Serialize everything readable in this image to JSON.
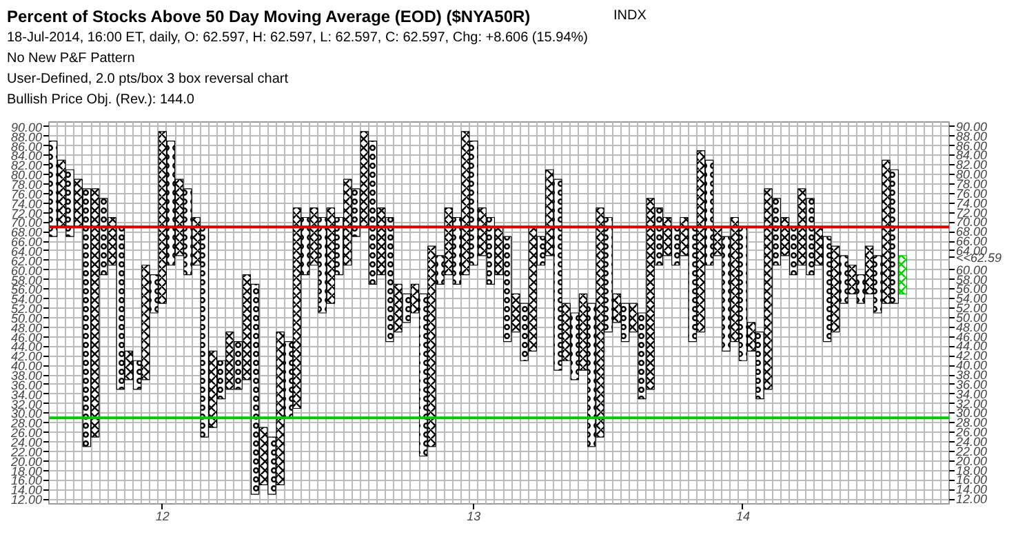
{
  "chart_data": {
    "type": "bar",
    "title": "Percent of Stocks Above 50 Day Moving Average (EOD) ($NYA50R)",
    "subtitle": "18-Jul-2014, 16:00 ET, daily, O: 62.597, H: 62.597, L: 62.597, C: 62.597, Chg: +8.606 (15.94%)",
    "categories": [
      null,
      null,
      null,
      null,
      null,
      null,
      null,
      null,
      null,
      null,
      null,
      null,
      null,
      "12",
      null,
      null,
      null,
      null,
      null,
      null,
      null,
      null,
      null,
      null,
      null,
      null,
      null,
      null,
      null,
      null,
      null,
      null,
      null,
      null,
      null,
      null,
      null,
      null,
      null,
      null,
      null,
      null,
      null,
      null,
      null,
      null,
      null,
      null,
      null,
      null,
      "13",
      null,
      null,
      null,
      null,
      null,
      null,
      null,
      null,
      null,
      null,
      null,
      null,
      null,
      null,
      null,
      null,
      null,
      null,
      null,
      null,
      null,
      null,
      null,
      null,
      null,
      null,
      null,
      null,
      null,
      null,
      null,
      "14",
      null,
      null,
      null,
      null,
      null,
      null,
      null,
      null,
      null,
      null,
      null,
      null,
      null,
      null,
      null,
      null,
      null,
      null,
      null,
      null,
      null,
      null,
      null,
      null
    ],
    "series": [
      {
        "marker": "circle",
        "color": "#000000",
        "values": [
          20,
          null,
          14,
          null,
          54,
          null,
          16,
          null,
          34,
          null,
          6,
          null,
          8,
          null,
          26,
          null,
          18,
          null,
          44,
          null,
          8,
          null,
          10,
          null,
          44,
          null,
          12,
          null,
          16,
          null,
          12,
          null,
          20,
          null,
          12,
          null,
          10,
          null,
          30,
          null,
          26,
          null,
          6,
          null,
          34,
          null,
          6,
          null,
          14,
          null,
          26,
          null,
          14,
          null,
          22,
          null,
          12,
          null,
          6,
          null,
          40,
          null,
          14,
          null,
          30,
          null,
          24,
          null,
          8,
          null,
          18,
          null,
          12,
          null,
          8,
          null,
          24,
          null,
          22,
          null,
          24,
          null,
          28,
          null,
          14,
          null,
          14,
          null,
          10,
          null,
          16,
          null,
          22,
          null,
          10,
          null,
          6,
          null,
          12,
          null,
          28,
          null,
          null,
          null,
          null,
          null,
          null
        ],
        "base": [
          67,
          null,
          67,
          null,
          23,
          null,
          59,
          null,
          35,
          null,
          35,
          null,
          51,
          null,
          61,
          null,
          59,
          null,
          25,
          null,
          33,
          null,
          35,
          null,
          13,
          null,
          13,
          null,
          29,
          null,
          59,
          null,
          51,
          null,
          59,
          null,
          67,
          null,
          57,
          null,
          45,
          null,
          49,
          null,
          21,
          null,
          57,
          null,
          57,
          null,
          61,
          null,
          57,
          null,
          45,
          null,
          41,
          null,
          61,
          null,
          39,
          null,
          37,
          null,
          23,
          null,
          47,
          null,
          45,
          null,
          33,
          null,
          61,
          null,
          61,
          null,
          45,
          null,
          61,
          null,
          43,
          null,
          41,
          null,
          33,
          null,
          61,
          null,
          59,
          null,
          59,
          null,
          45,
          null,
          53,
          null,
          53,
          null,
          51,
          null,
          53,
          null,
          null,
          null,
          null,
          null,
          null
        ]
      },
      {
        "marker": "cross",
        "color": "#000000",
        "values": [
          null,
          14,
          null,
          10,
          null,
          52,
          null,
          10,
          null,
          6,
          null,
          24,
          null,
          36,
          null,
          16,
          null,
          10,
          null,
          16,
          null,
          12,
          null,
          22,
          null,
          12,
          null,
          32,
          null,
          42,
          null,
          12,
          null,
          20,
          null,
          18,
          null,
          20,
          null,
          14,
          null,
          10,
          null,
          6,
          null,
          42,
          null,
          14,
          null,
          30,
          null,
          10,
          null,
          10,
          null,
          8,
          null,
          26,
          null,
          18,
          null,
          12,
          null,
          16,
          null,
          48,
          null,
          6,
          null,
          6,
          null,
          40,
          null,
          8,
          null,
          8,
          null,
          38,
          null,
          6,
          null,
          26,
          null,
          6,
          null,
          42,
          null,
          8,
          null,
          16,
          null,
          8,
          null,
          18,
          null,
          6,
          null,
          10,
          null,
          30,
          null,
          null,
          null,
          null,
          null,
          null,
          null
        ],
        "base": [
          null,
          69,
          null,
          69,
          null,
          25,
          null,
          61,
          null,
          37,
          null,
          37,
          null,
          53,
          null,
          63,
          null,
          61,
          null,
          27,
          null,
          35,
          null,
          37,
          null,
          15,
          null,
          15,
          null,
          31,
          null,
          61,
          null,
          53,
          null,
          61,
          null,
          69,
          null,
          59,
          null,
          47,
          null,
          51,
          null,
          23,
          null,
          59,
          null,
          59,
          null,
          63,
          null,
          59,
          null,
          47,
          null,
          43,
          null,
          63,
          null,
          41,
          null,
          39,
          null,
          25,
          null,
          49,
          null,
          47,
          null,
          35,
          null,
          63,
          null,
          63,
          null,
          47,
          null,
          63,
          null,
          45,
          null,
          43,
          null,
          35,
          null,
          63,
          null,
          61,
          null,
          61,
          null,
          47,
          null,
          55,
          null,
          55,
          null,
          53,
          null,
          null,
          null,
          null,
          null,
          null,
          null
        ]
      },
      {
        "marker": "cross",
        "color": "#00cc00",
        "values": [
          null,
          null,
          null,
          null,
          null,
          null,
          null,
          null,
          null,
          null,
          null,
          null,
          null,
          null,
          null,
          null,
          null,
          null,
          null,
          null,
          null,
          null,
          null,
          null,
          null,
          null,
          null,
          null,
          null,
          null,
          null,
          null,
          null,
          null,
          null,
          null,
          null,
          null,
          null,
          null,
          null,
          null,
          null,
          null,
          null,
          null,
          null,
          null,
          null,
          null,
          null,
          null,
          null,
          null,
          null,
          null,
          null,
          null,
          null,
          null,
          null,
          null,
          null,
          null,
          null,
          null,
          null,
          null,
          null,
          null,
          null,
          null,
          null,
          null,
          null,
          null,
          null,
          null,
          null,
          null,
          null,
          null,
          null,
          null,
          null,
          null,
          null,
          null,
          null,
          null,
          null,
          null,
          null,
          null,
          null,
          null,
          null,
          null,
          null,
          null,
          null,
          8,
          null,
          null,
          null,
          null,
          null
        ],
        "base": [
          null,
          null,
          null,
          null,
          null,
          null,
          null,
          null,
          null,
          null,
          null,
          null,
          null,
          null,
          null,
          null,
          null,
          null,
          null,
          null,
          null,
          null,
          null,
          null,
          null,
          null,
          null,
          null,
          null,
          null,
          null,
          null,
          null,
          null,
          null,
          null,
          null,
          null,
          null,
          null,
          null,
          null,
          null,
          null,
          null,
          null,
          null,
          null,
          null,
          null,
          null,
          null,
          null,
          null,
          null,
          null,
          null,
          null,
          null,
          null,
          null,
          null,
          null,
          null,
          null,
          null,
          null,
          null,
          null,
          null,
          null,
          null,
          null,
          null,
          null,
          null,
          null,
          null,
          null,
          null,
          null,
          null,
          null,
          null,
          null,
          null,
          null,
          null,
          null,
          null,
          null,
          null,
          null,
          null,
          null,
          null,
          null,
          null,
          null,
          null,
          null,
          55,
          null,
          null,
          null,
          null,
          null
        ]
      }
    ],
    "ylim": [
      11,
      91
    ],
    "yticks": [
      {
        "value": 12,
        "label": "12.00"
      },
      {
        "value": 14,
        "label": "14.00"
      },
      {
        "value": 16,
        "label": "16.00"
      },
      {
        "value": 18,
        "label": "18.00"
      },
      {
        "value": 20,
        "label": "20.00"
      },
      {
        "value": 22,
        "label": "22.00"
      },
      {
        "value": 24,
        "label": "24.00"
      },
      {
        "value": 26,
        "label": "26.00"
      },
      {
        "value": 28,
        "label": "28.00"
      },
      {
        "value": 30,
        "label": "30.00"
      },
      {
        "value": 32,
        "label": "32.00"
      },
      {
        "value": 34,
        "label": "34.00"
      },
      {
        "value": 36,
        "label": "36.00"
      },
      {
        "value": 38,
        "label": "38.00"
      },
      {
        "value": 40,
        "label": "40.00"
      },
      {
        "value": 42,
        "label": "42.00"
      },
      {
        "value": 44,
        "label": "44.00"
      },
      {
        "value": 46,
        "label": "46.00"
      },
      {
        "value": 48,
        "label": "48.00"
      },
      {
        "value": 50,
        "label": "50.00"
      },
      {
        "value": 52,
        "label": "52.00"
      },
      {
        "value": 54,
        "label": "54.00"
      },
      {
        "value": 56,
        "label": "56.00"
      },
      {
        "value": 58,
        "label": "58.00"
      },
      {
        "value": 60,
        "label": "60.00"
      },
      {
        "value": 62,
        "label": "62.00"
      },
      {
        "value": 64,
        "label": "64.00"
      },
      {
        "value": 66,
        "label": "66.00"
      },
      {
        "value": 68,
        "label": "68.00"
      },
      {
        "value": 70,
        "label": "70.00"
      },
      {
        "value": 72,
        "label": "72.00"
      },
      {
        "value": 74,
        "label": "74.00"
      },
      {
        "value": 76,
        "label": "76.00"
      },
      {
        "value": 78,
        "label": "78.00"
      },
      {
        "value": 80,
        "label": "80.00"
      },
      {
        "value": 82,
        "label": "82.00"
      },
      {
        "value": 84,
        "label": "84.00"
      },
      {
        "value": 86,
        "label": "86.00"
      },
      {
        "value": 88,
        "label": "88.00"
      },
      {
        "value": 90,
        "label": "90.00"
      }
    ],
    "y2lim": [
      11,
      91
    ],
    "y2ticks": [
      {
        "value": 12,
        "label": "12.00"
      },
      {
        "value": 14,
        "label": "14.00"
      },
      {
        "value": 16,
        "label": "16.00"
      },
      {
        "value": 18,
        "label": "18.00"
      },
      {
        "value": 20,
        "label": "20.00"
      },
      {
        "value": 22,
        "label": "22.00"
      },
      {
        "value": 24,
        "label": "24.00"
      },
      {
        "value": 26,
        "label": "26.00"
      },
      {
        "value": 28,
        "label": "28.00"
      },
      {
        "value": 30,
        "label": "30.00"
      },
      {
        "value": 32,
        "label": "32.00"
      },
      {
        "value": 34,
        "label": "34.00"
      },
      {
        "value": 36,
        "label": "36.00"
      },
      {
        "value": 38,
        "label": "38.00"
      },
      {
        "value": 40,
        "label": "40.00"
      },
      {
        "value": 42,
        "label": "42.00"
      },
      {
        "value": 44,
        "label": "44.00"
      },
      {
        "value": 46,
        "label": "46.00"
      },
      {
        "value": 48,
        "label": "48.00"
      },
      {
        "value": 50,
        "label": "50.00"
      },
      {
        "value": 52,
        "label": "52.00"
      },
      {
        "value": 54,
        "label": "54.00"
      },
      {
        "value": 56,
        "label": "56.00"
      },
      {
        "value": 58,
        "label": "58.00"
      },
      {
        "value": 60,
        "label": "60.00"
      },
      {
        "value": 62.59,
        "label": "<<62.59"
      },
      {
        "value": 64,
        "label": "64.00"
      },
      {
        "value": 66,
        "label": "66.00"
      },
      {
        "value": 68,
        "label": "68.00"
      },
      {
        "value": 70,
        "label": "70.00"
      },
      {
        "value": 72,
        "label": "72.00"
      },
      {
        "value": 74,
        "label": "74.00"
      },
      {
        "value": 76,
        "label": "76.00"
      },
      {
        "value": 78,
        "label": "78.00"
      },
      {
        "value": 80,
        "label": "80.00"
      },
      {
        "value": 82,
        "label": "82.00"
      },
      {
        "value": 84,
        "label": "84.00"
      },
      {
        "value": 86,
        "label": "86.00"
      },
      {
        "value": 88,
        "label": "88.00"
      },
      {
        "value": 90,
        "label": "90.00"
      }
    ],
    "ref_lines": [
      {
        "axis": "y",
        "value": 69,
        "color": "#dd0000"
      },
      {
        "axis": "y",
        "value": 29,
        "color": "#00cc00"
      }
    ],
    "grid": true,
    "annotations": [
      "INDX",
      "No New P&F Pattern",
      "User-Defined, 2.0 pts/box 3 box reversal chart",
      "Bullish Price Obj. (Rev.): 144.0"
    ]
  }
}
